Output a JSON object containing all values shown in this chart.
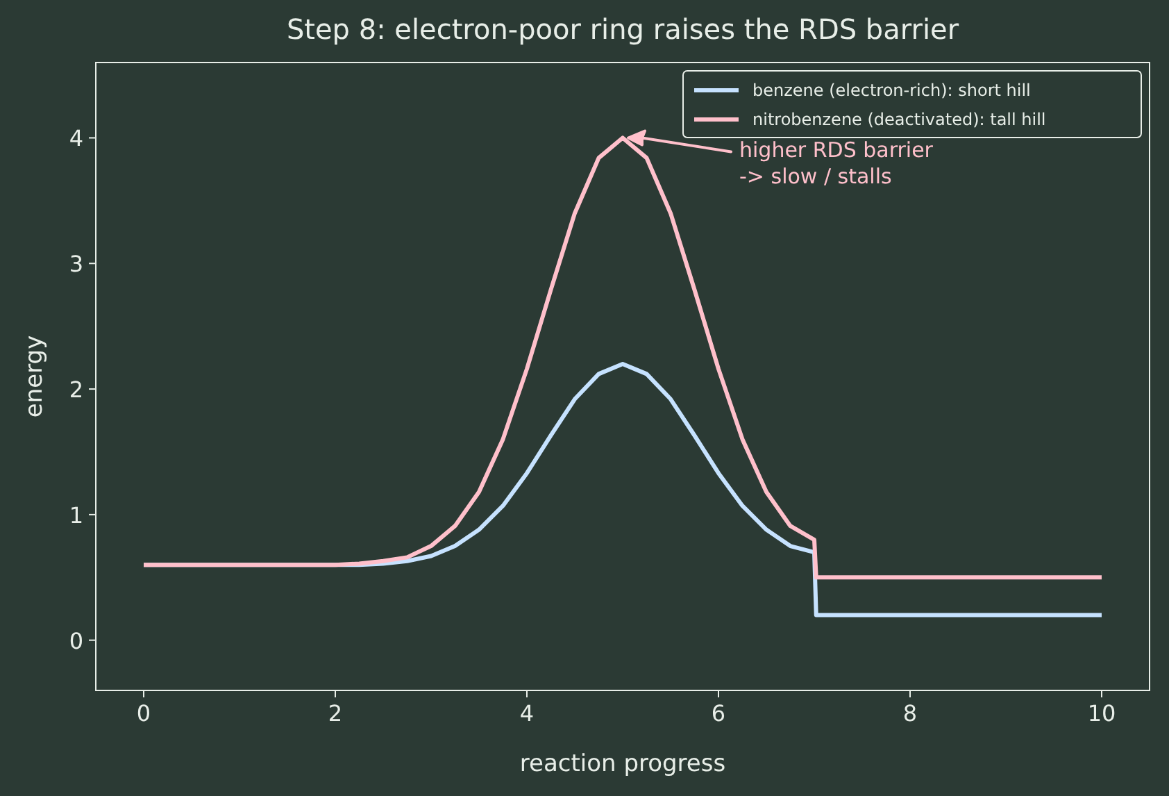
{
  "chart_data": {
    "type": "line",
    "title": "Step 8: electron-poor ring raises the RDS barrier",
    "xlabel": "reaction progress",
    "ylabel": "energy",
    "x": [
      0,
      2,
      2.25,
      2.5,
      2.75,
      3,
      3.25,
      3.5,
      3.75,
      4,
      4.25,
      4.5,
      4.75,
      5,
      5.25,
      5.5,
      5.75,
      6,
      6.25,
      6.5,
      6.75,
      7,
      7.02,
      10
    ],
    "series": [
      {
        "name": "benzene (electron-rich): short hill",
        "color": "#c6e2ff",
        "values": [
          0.6,
          0.6,
          0.6,
          0.61,
          0.63,
          0.67,
          0.75,
          0.88,
          1.07,
          1.33,
          1.63,
          1.92,
          2.12,
          2.2,
          2.12,
          1.92,
          1.63,
          1.33,
          1.07,
          0.88,
          0.75,
          0.7,
          0.2,
          0.2
        ]
      },
      {
        "name": "nitrobenzene (deactivated): tall hill",
        "color": "#ffc0cb",
        "values": [
          0.6,
          0.6,
          0.61,
          0.63,
          0.66,
          0.75,
          0.91,
          1.18,
          1.6,
          2.16,
          2.79,
          3.4,
          3.84,
          4.0,
          3.84,
          3.4,
          2.79,
          2.16,
          1.6,
          1.18,
          0.91,
          0.8,
          0.5,
          0.5
        ]
      }
    ],
    "xlim": [
      -0.5,
      10.5
    ],
    "ylim": [
      -0.4,
      4.6
    ],
    "xticks": [
      0,
      2,
      4,
      6,
      8,
      10
    ],
    "yticks": [
      0,
      1,
      2,
      3,
      4
    ],
    "grid": false,
    "legend": "top right",
    "line_style": "solid",
    "marker": "none",
    "annotations": [
      "higher RDS barrier\n-> slow / stalls"
    ]
  }
}
